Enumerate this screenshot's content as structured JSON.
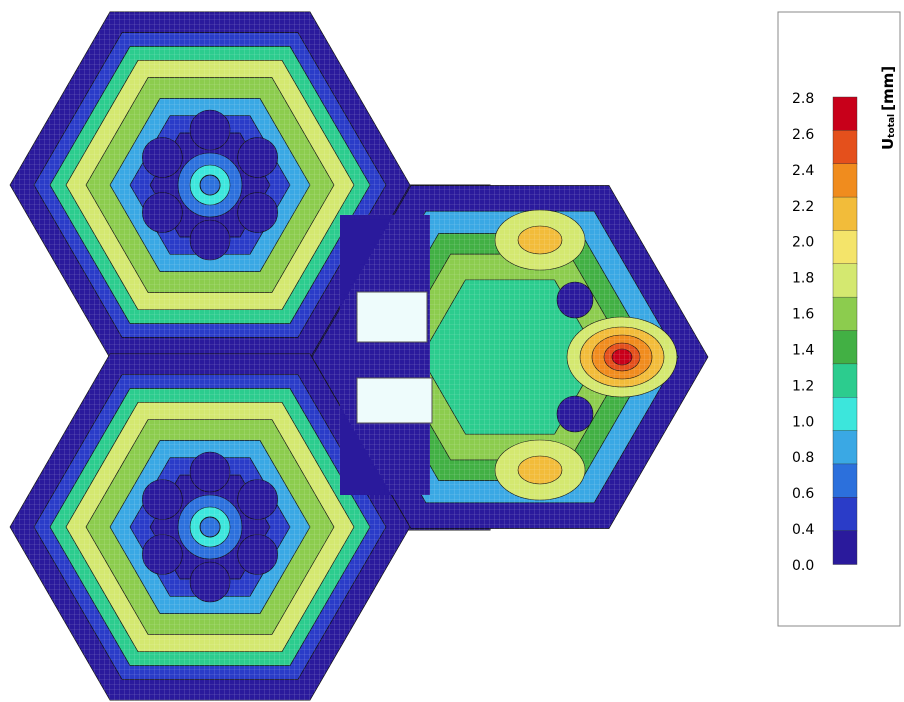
{
  "legend": {
    "symbol": "U",
    "subscript": "total",
    "unit": "[mm]",
    "ticks": [
      "2.8",
      "2.6",
      "2.4",
      "2.2",
      "2.0",
      "1.8",
      "1.6",
      "1.4",
      "1.2",
      "1.0",
      "0.8",
      "0.6",
      "0.4",
      "0.0"
    ],
    "colors": [
      "#c8001a",
      "#e4501c",
      "#f08c1e",
      "#f2bc3a",
      "#f4e46a",
      "#d4e870",
      "#8ccc4e",
      "#42b044",
      "#2ccc8e",
      "#3ce6dc",
      "#3aa8e4",
      "#2c70dc",
      "#2a3cc8",
      "#2a1a9c"
    ]
  }
}
